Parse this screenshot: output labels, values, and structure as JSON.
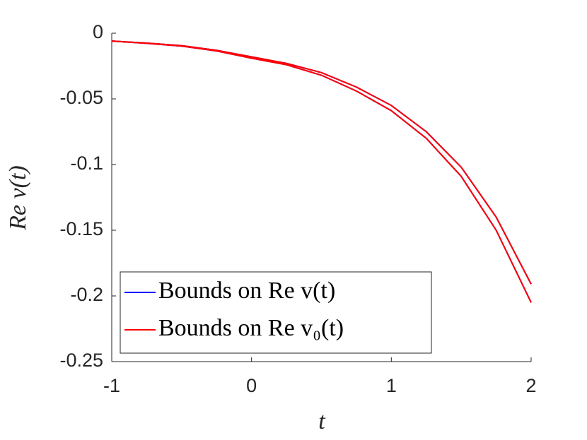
{
  "chart_data": {
    "type": "line",
    "x_label": "t",
    "y_label": "Re v(t)",
    "x": [
      -1,
      -0.75,
      -0.5,
      -0.25,
      0,
      0.25,
      0.5,
      0.75,
      1,
      1.25,
      1.5,
      1.75,
      2
    ],
    "series": [
      {
        "name": "Bounds on Re v(t)",
        "color": "#0000ff",
        "upper": [
          -0.006,
          -0.0075,
          -0.0095,
          -0.013,
          -0.018,
          -0.023,
          -0.03,
          -0.041,
          -0.055,
          -0.075,
          -0.102,
          -0.14,
          -0.191
        ],
        "lower": [
          -0.006,
          -0.0077,
          -0.0098,
          -0.0135,
          -0.019,
          -0.024,
          -0.032,
          -0.044,
          -0.059,
          -0.08,
          -0.109,
          -0.15,
          -0.205
        ]
      },
      {
        "name": "Bounds on Re v₀(t)",
        "color": "#ff0000",
        "upper": [
          -0.006,
          -0.0075,
          -0.0095,
          -0.013,
          -0.018,
          -0.023,
          -0.03,
          -0.041,
          -0.055,
          -0.075,
          -0.102,
          -0.14,
          -0.191
        ],
        "lower": [
          -0.006,
          -0.0077,
          -0.0098,
          -0.0135,
          -0.019,
          -0.024,
          -0.032,
          -0.044,
          -0.059,
          -0.08,
          -0.109,
          -0.15,
          -0.205
        ]
      }
    ],
    "xlim": [
      -1,
      2
    ],
    "xticks": [
      -1,
      0,
      1,
      2
    ],
    "ylim": [
      -0.25,
      0
    ],
    "yticks": [
      -0.25,
      -0.2,
      -0.15,
      -0.1,
      -0.05,
      0
    ]
  }
}
